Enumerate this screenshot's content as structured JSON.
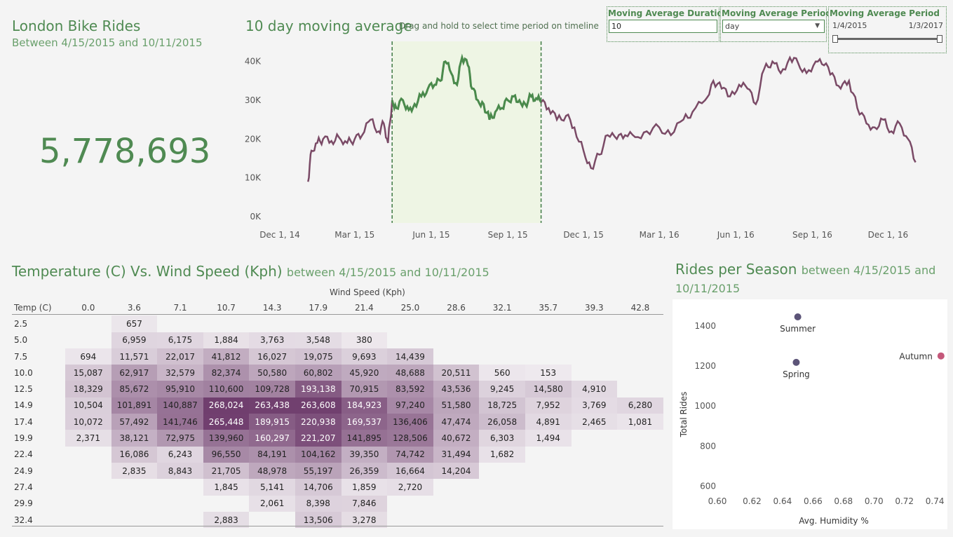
{
  "kpi": {
    "title": "London Bike Rides",
    "subtitle": "Between 4/15/2015 and 10/11/2015",
    "value": "5,778,693"
  },
  "moving_average": {
    "title": "10 day moving average",
    "hint": "Drag and hold to select time period on timeline"
  },
  "controls": {
    "duration_label": "Moving Average Duration",
    "duration_value": "10",
    "period_label": "Moving Average Period",
    "period_value": "day",
    "range_label": "Moving Average Period",
    "range_start": "1/4/2015",
    "range_end": "1/3/2017"
  },
  "line_chart": {
    "type": "line",
    "y_ticks": [
      "0K",
      "10K",
      "20K",
      "30K",
      "40K"
    ],
    "x_ticks": [
      "Dec 1, 14",
      "Mar 1, 15",
      "Jun 1, 15",
      "Sep 1, 15",
      "Dec 1, 15",
      "Mar 1, 16",
      "Jun 1, 16",
      "Sep 1, 16",
      "Dec 1, 16"
    ],
    "ylim": [
      0,
      45000
    ],
    "series_color": "#7a4a66",
    "selected_color": "#4a8a4c",
    "selection": [
      "4/15/2015",
      "10/11/2015"
    ],
    "chart_data": {
      "type": "line",
      "x": [
        "1/4/2015",
        "1/8/2015",
        "1/15/2015",
        "1/22/2015",
        "2/1/2015",
        "2/10/2015",
        "2/20/2015",
        "3/1/2015",
        "3/10/2015",
        "3/20/2015",
        "3/30/2015",
        "4/5/2015",
        "4/10/2015",
        "4/15/2015",
        "4/20/2015",
        "4/28/2015",
        "5/5/2015",
        "5/12/2015",
        "5/20/2015",
        "5/28/2015",
        "6/5/2015",
        "6/12/2015",
        "6/18/2015",
        "6/25/2015",
        "7/2/2015",
        "7/8/2015",
        "7/15/2015",
        "7/20/2015",
        "7/27/2015",
        "8/3/2015",
        "8/10/2015",
        "8/17/2015",
        "8/25/2015",
        "9/1/2015",
        "9/8/2015",
        "9/15/2015",
        "9/22/2015",
        "9/29/2015",
        "10/5/2015",
        "10/11/2015",
        "10/20/2015",
        "10/30/2015",
        "11/10/2015",
        "11/20/2015",
        "12/1/2015",
        "12/10/2015",
        "12/20/2015",
        "12/30/2015",
        "1/10/2016",
        "1/20/2016",
        "2/1/2016",
        "2/15/2016",
        "3/1/2016",
        "3/15/2016",
        "3/30/2016",
        "4/10/2016",
        "4/25/2016",
        "5/5/2016",
        "5/15/2016",
        "5/25/2016",
        "6/5/2016",
        "6/15/2016",
        "6/25/2016",
        "7/5/2016",
        "7/15/2016",
        "7/25/2016",
        "8/5/2016",
        "8/15/2016",
        "8/25/2016",
        "9/5/2016",
        "9/15/2016",
        "9/25/2016",
        "10/5/2016",
        "10/15/2016",
        "10/25/2016",
        "11/5/2016",
        "11/15/2016",
        "11/25/2016",
        "12/5/2016",
        "12/15/2016",
        "12/25/2016",
        "1/3/2017"
      ],
      "values": [
        9000,
        17000,
        19000,
        20000,
        19500,
        20500,
        19000,
        20000,
        21000,
        25000,
        22000,
        24000,
        19000,
        30000,
        28000,
        30000,
        27500,
        29000,
        31000,
        33000,
        34000,
        35000,
        40000,
        37000,
        34000,
        41000,
        39000,
        33000,
        30000,
        29000,
        25000,
        27000,
        28000,
        30000,
        31000,
        30000,
        29000,
        31000,
        30500,
        29500,
        28000,
        25000,
        26000,
        23000,
        17000,
        12500,
        16000,
        21000,
        20000,
        21000,
        20500,
        22000,
        23000,
        21000,
        25000,
        27000,
        30000,
        35000,
        33000,
        31000,
        34000,
        33000,
        29000,
        38000,
        40000,
        37000,
        41000,
        39500,
        37000,
        40000,
        39000,
        37000,
        33000,
        35000,
        28000,
        24000,
        23000,
        25000,
        22000,
        24000,
        20000,
        14000
      ]
    }
  },
  "heatmap": {
    "title": "Temperature (C) Vs. Wind Speed (Kph)",
    "title_suffix": "between 4/15/2015 and 10/11/2015",
    "col_axis_label": "Wind Speed (Kph)",
    "row_axis_label": "Temp (C)",
    "columns": [
      "0.0",
      "3.6",
      "7.1",
      "10.7",
      "14.3",
      "17.9",
      "21.4",
      "25.0",
      "28.6",
      "32.1",
      "35.7",
      "39.3",
      "42.8"
    ],
    "rows": [
      {
        "temp": "2.5",
        "values": [
          "",
          "657",
          "",
          "",
          "",
          "",
          "",
          "",
          "",
          "",
          "",
          "",
          ""
        ]
      },
      {
        "temp": "5.0",
        "values": [
          "",
          "6,959",
          "6,175",
          "1,884",
          "3,763",
          "3,548",
          "380",
          "",
          "",
          "",
          "",
          "",
          ""
        ]
      },
      {
        "temp": "7.5",
        "values": [
          "694",
          "11,571",
          "22,017",
          "41,812",
          "16,027",
          "19,075",
          "9,693",
          "14,439",
          "",
          "",
          "",
          "",
          ""
        ]
      },
      {
        "temp": "10.0",
        "values": [
          "15,087",
          "62,917",
          "32,579",
          "82,374",
          "50,580",
          "60,802",
          "45,920",
          "48,688",
          "20,511",
          "560",
          "153",
          "",
          ""
        ]
      },
      {
        "temp": "12.5",
        "values": [
          "18,329",
          "85,672",
          "95,910",
          "110,600",
          "109,728",
          "193,138",
          "70,915",
          "83,592",
          "43,536",
          "9,245",
          "14,580",
          "4,910",
          ""
        ]
      },
      {
        "temp": "14.9",
        "values": [
          "10,504",
          "101,891",
          "140,887",
          "268,024",
          "263,438",
          "263,608",
          "184,923",
          "97,240",
          "51,580",
          "18,725",
          "7,952",
          "3,769",
          "6,280"
        ]
      },
      {
        "temp": "17.4",
        "values": [
          "10,072",
          "57,492",
          "141,746",
          "265,448",
          "189,915",
          "220,938",
          "169,537",
          "136,406",
          "47,474",
          "26,058",
          "4,891",
          "2,465",
          "1,081"
        ]
      },
      {
        "temp": "19.9",
        "values": [
          "2,371",
          "38,121",
          "72,975",
          "139,960",
          "160,297",
          "221,207",
          "141,895",
          "128,506",
          "40,672",
          "6,303",
          "1,494",
          "",
          ""
        ]
      },
      {
        "temp": "22.4",
        "values": [
          "",
          "16,086",
          "6,243",
          "96,550",
          "84,191",
          "104,162",
          "39,350",
          "74,742",
          "31,494",
          "1,682",
          "",
          "",
          ""
        ]
      },
      {
        "temp": "24.9",
        "values": [
          "",
          "2,835",
          "8,843",
          "21,705",
          "48,978",
          "55,197",
          "26,359",
          "16,664",
          "14,204",
          "",
          "",
          "",
          ""
        ]
      },
      {
        "temp": "27.4",
        "values": [
          "",
          "",
          "",
          "1,845",
          "5,141",
          "14,706",
          "1,859",
          "2,720",
          "",
          "",
          "",
          "",
          ""
        ]
      },
      {
        "temp": "29.9",
        "values": [
          "",
          "",
          "",
          "",
          "2,061",
          "8,398",
          "7,846",
          "",
          "",
          "",
          "",
          "",
          ""
        ]
      },
      {
        "temp": "32.4",
        "values": [
          "",
          "",
          "",
          "2,883",
          "",
          "13,506",
          "3,278",
          "",
          "",
          "",
          "",
          "",
          ""
        ]
      }
    ]
  },
  "season_chart": {
    "title": "Rides per Season",
    "title_suffix": "between 4/15/2015 and 10/11/2015",
    "chart_data": {
      "type": "scatter",
      "xlabel": "Avg. Humidity %",
      "ylabel": "Total Rides",
      "x_ticks": [
        "0.60",
        "0.62",
        "0.64",
        "0.66",
        "0.68",
        "0.70",
        "0.72",
        "0.74"
      ],
      "y_ticks": [
        "600",
        "800",
        "1000",
        "1200",
        "1400"
      ],
      "xlim": [
        0.6,
        0.745
      ],
      "ylim": [
        570,
        1480
      ],
      "points": [
        {
          "label": "Summer",
          "x": 0.65,
          "y": 1445,
          "color": "#5c5478"
        },
        {
          "label": "Spring",
          "x": 0.649,
          "y": 1218,
          "color": "#5c5478"
        },
        {
          "label": "Autumn",
          "x": 0.744,
          "y": 1250,
          "color": "#c4587a"
        }
      ]
    }
  }
}
